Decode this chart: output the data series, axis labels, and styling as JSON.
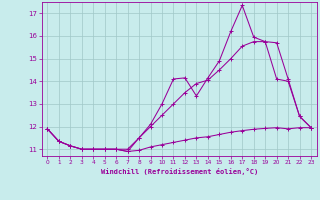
{
  "xlabel": "Windchill (Refroidissement éolien,°C)",
  "xlim": [
    -0.5,
    23.5
  ],
  "ylim": [
    10.7,
    17.5
  ],
  "yticks": [
    11,
    12,
    13,
    14,
    15,
    16,
    17
  ],
  "xticks": [
    0,
    1,
    2,
    3,
    4,
    5,
    6,
    7,
    8,
    9,
    10,
    11,
    12,
    13,
    14,
    15,
    16,
    17,
    18,
    19,
    20,
    21,
    22,
    23
  ],
  "bg_color": "#c8ecec",
  "line_color": "#990099",
  "grid_color": "#a0c8c8",
  "line1_x": [
    0,
    1,
    2,
    3,
    4,
    5,
    6,
    7,
    8,
    9,
    10,
    11,
    12,
    13,
    14,
    15,
    16,
    17,
    18,
    19,
    20,
    21,
    22,
    23
  ],
  "line1_y": [
    11.9,
    11.35,
    11.15,
    11.0,
    11.0,
    11.0,
    11.0,
    10.9,
    10.95,
    11.1,
    11.2,
    11.3,
    11.4,
    11.5,
    11.55,
    11.65,
    11.75,
    11.82,
    11.88,
    11.92,
    11.95,
    11.9,
    11.95,
    11.95
  ],
  "line2_x": [
    0,
    1,
    2,
    3,
    4,
    5,
    6,
    7,
    8,
    9,
    10,
    11,
    12,
    13,
    14,
    15,
    16,
    17,
    18,
    19,
    20,
    21,
    22,
    23
  ],
  "line2_y": [
    11.9,
    11.35,
    11.15,
    11.0,
    11.0,
    11.0,
    11.0,
    10.9,
    11.5,
    12.1,
    13.0,
    14.1,
    14.15,
    13.35,
    14.15,
    14.9,
    16.2,
    17.35,
    15.95,
    15.75,
    14.1,
    14.0,
    12.45,
    11.95
  ],
  "line3_x": [
    0,
    1,
    2,
    3,
    4,
    5,
    6,
    7,
    8,
    9,
    10,
    11,
    12,
    13,
    14,
    15,
    16,
    17,
    18,
    19,
    20,
    21,
    22,
    23
  ],
  "line3_y": [
    11.9,
    11.35,
    11.15,
    11.0,
    11.0,
    11.0,
    11.0,
    11.0,
    11.5,
    12.0,
    12.5,
    13.0,
    13.5,
    13.9,
    14.05,
    14.5,
    15.0,
    15.55,
    15.75,
    15.75,
    15.7,
    14.1,
    12.45,
    11.95
  ]
}
